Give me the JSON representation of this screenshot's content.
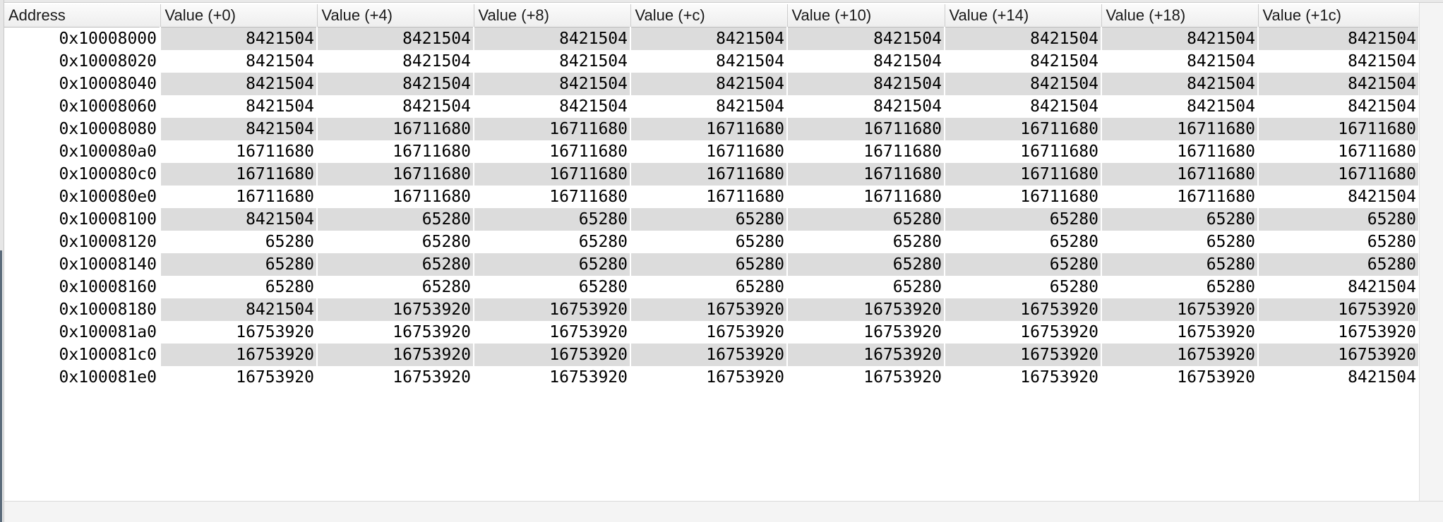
{
  "table": {
    "headers": [
      "Address",
      "Value (+0)",
      "Value (+4)",
      "Value (+8)",
      "Value (+c)",
      "Value (+10)",
      "Value (+14)",
      "Value (+18)",
      "Value (+1c)"
    ],
    "rows": [
      [
        "0x10008000",
        "8421504",
        "8421504",
        "8421504",
        "8421504",
        "8421504",
        "8421504",
        "8421504",
        "8421504"
      ],
      [
        "0x10008020",
        "8421504",
        "8421504",
        "8421504",
        "8421504",
        "8421504",
        "8421504",
        "8421504",
        "8421504"
      ],
      [
        "0x10008040",
        "8421504",
        "8421504",
        "8421504",
        "8421504",
        "8421504",
        "8421504",
        "8421504",
        "8421504"
      ],
      [
        "0x10008060",
        "8421504",
        "8421504",
        "8421504",
        "8421504",
        "8421504",
        "8421504",
        "8421504",
        "8421504"
      ],
      [
        "0x10008080",
        "8421504",
        "16711680",
        "16711680",
        "16711680",
        "16711680",
        "16711680",
        "16711680",
        "16711680"
      ],
      [
        "0x100080a0",
        "16711680",
        "16711680",
        "16711680",
        "16711680",
        "16711680",
        "16711680",
        "16711680",
        "16711680"
      ],
      [
        "0x100080c0",
        "16711680",
        "16711680",
        "16711680",
        "16711680",
        "16711680",
        "16711680",
        "16711680",
        "16711680"
      ],
      [
        "0x100080e0",
        "16711680",
        "16711680",
        "16711680",
        "16711680",
        "16711680",
        "16711680",
        "16711680",
        "8421504"
      ],
      [
        "0x10008100",
        "8421504",
        "65280",
        "65280",
        "65280",
        "65280",
        "65280",
        "65280",
        "65280"
      ],
      [
        "0x10008120",
        "65280",
        "65280",
        "65280",
        "65280",
        "65280",
        "65280",
        "65280",
        "65280"
      ],
      [
        "0x10008140",
        "65280",
        "65280",
        "65280",
        "65280",
        "65280",
        "65280",
        "65280",
        "65280"
      ],
      [
        "0x10008160",
        "65280",
        "65280",
        "65280",
        "65280",
        "65280",
        "65280",
        "65280",
        "8421504"
      ],
      [
        "0x10008180",
        "8421504",
        "16753920",
        "16753920",
        "16753920",
        "16753920",
        "16753920",
        "16753920",
        "16753920"
      ],
      [
        "0x100081a0",
        "16753920",
        "16753920",
        "16753920",
        "16753920",
        "16753920",
        "16753920",
        "16753920",
        "16753920"
      ],
      [
        "0x100081c0",
        "16753920",
        "16753920",
        "16753920",
        "16753920",
        "16753920",
        "16753920",
        "16753920",
        "16753920"
      ],
      [
        "0x100081e0",
        "16753920",
        "16753920",
        "16753920",
        "16753920",
        "16753920",
        "16753920",
        "16753920",
        "8421504"
      ]
    ]
  },
  "colors": {
    "stripe": "#dcdcdc",
    "background": "#ffffff",
    "header": "#f2f2f2"
  }
}
